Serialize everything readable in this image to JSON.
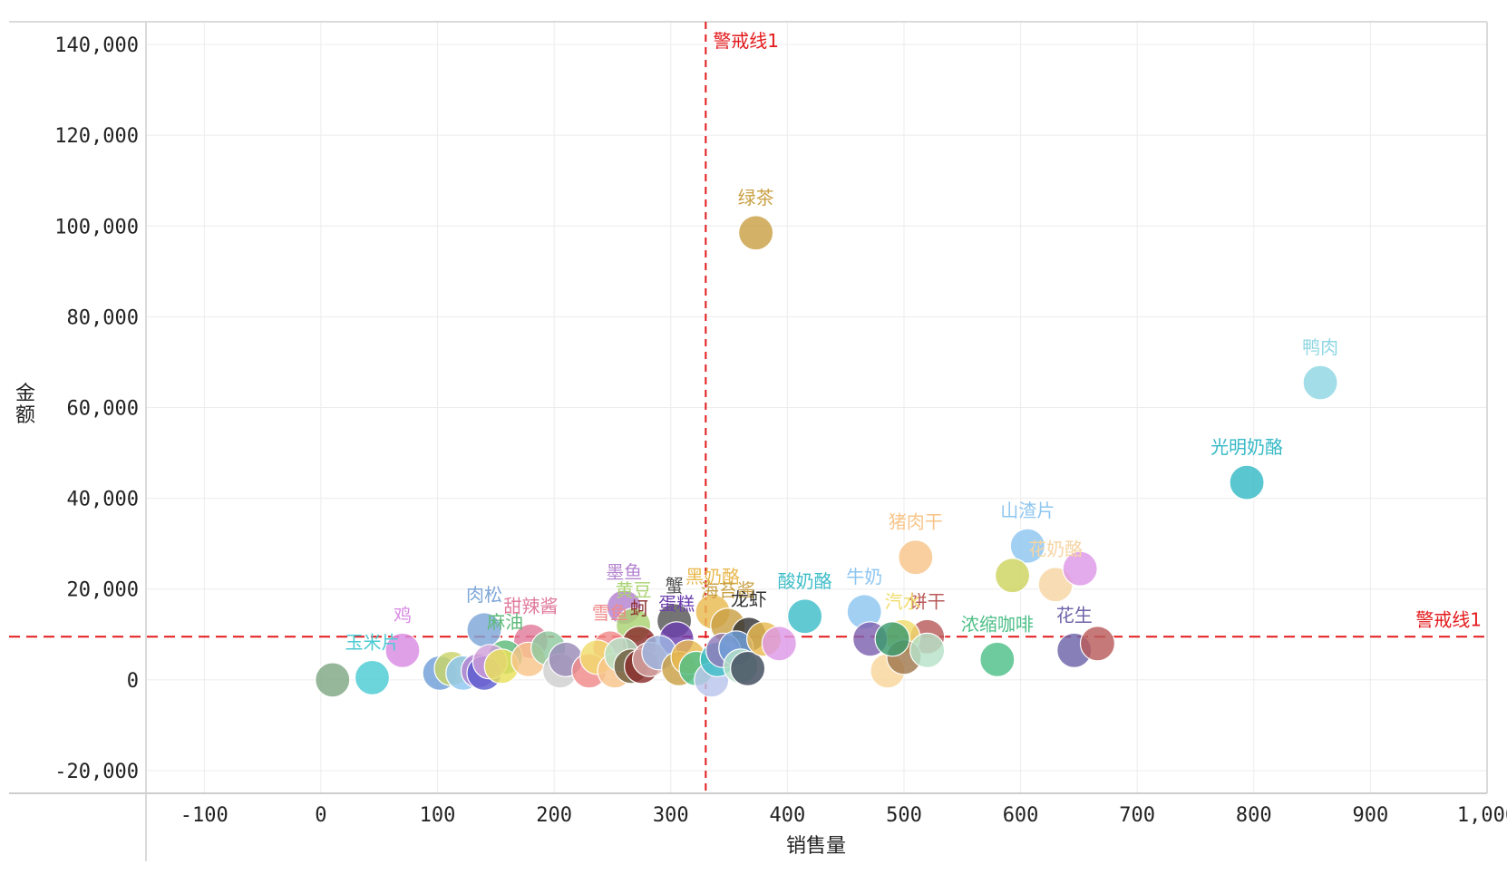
{
  "chart_data": {
    "type": "scatter",
    "xlabel": "销售量",
    "ylabel": "金额",
    "xlim": [
      -150,
      1000
    ],
    "ylim": [
      -25000,
      145000
    ],
    "x_ticks": [
      -100,
      0,
      100,
      200,
      300,
      400,
      500,
      600,
      700,
      800,
      900,
      1000
    ],
    "x_tick_labels": [
      "-100",
      "0",
      "100",
      "200",
      "300",
      "400",
      "500",
      "600",
      "700",
      "800",
      "900",
      "1,000"
    ],
    "y_ticks": [
      -20000,
      0,
      20000,
      40000,
      60000,
      80000,
      100000,
      120000,
      140000
    ],
    "y_tick_labels": [
      "-20,000",
      "0",
      "20,000",
      "40,000",
      "60,000",
      "80,000",
      "100,000",
      "120,000",
      "140,000"
    ],
    "grid": true,
    "reference_lines": [
      {
        "axis": "x",
        "value": 330,
        "label": "警戒线1",
        "color": "#e31a1c"
      },
      {
        "axis": "y",
        "value": 9500,
        "label": "警戒线1",
        "color": "#e31a1c"
      }
    ],
    "points": [
      {
        "name": "鸭肉",
        "x": 857,
        "y": 65500,
        "color": "#8fd7e3",
        "label": "鸭肉"
      },
      {
        "name": "光明奶酪",
        "x": 794,
        "y": 43500,
        "color": "#36b9c6",
        "label": "光明奶酪"
      },
      {
        "name": "绿茶",
        "x": 373,
        "y": 98500,
        "color": "#c9a044",
        "label": "绿茶"
      },
      {
        "name": "猪肉干",
        "x": 510,
        "y": 27000,
        "color": "#f8c58a",
        "label": "猪肉干"
      },
      {
        "name": "山渣片",
        "x": 606,
        "y": 29500,
        "color": "#8ec6f0",
        "label": "山渣片"
      },
      {
        "name": "花奶酪",
        "x": 630,
        "y": 21000,
        "color": "#f6d5a3",
        "label": "花奶酪"
      },
      {
        "name": "",
        "x": 651,
        "y": 24500,
        "color": "#dd99e6",
        "label": ""
      },
      {
        "name": "",
        "x": 593,
        "y": 23000,
        "color": "#cdd35e",
        "label": ""
      },
      {
        "name": "酸奶酪",
        "x": 415,
        "y": 14000,
        "color": "#3dbdc8",
        "label": "酸奶酪"
      },
      {
        "name": "牛奶",
        "x": 466,
        "y": 15000,
        "color": "#8ec6f0",
        "label": "牛奶"
      },
      {
        "name": "饼干",
        "x": 520,
        "y": 9500,
        "color": "#b95b5b",
        "label": "饼干"
      },
      {
        "name": "浓缩咖啡",
        "x": 580,
        "y": 4500,
        "color": "#4dbf87",
        "label": "浓缩咖啡"
      },
      {
        "name": "花生",
        "x": 646,
        "y": 6500,
        "color": "#6d63a8",
        "label": "花生"
      },
      {
        "name": "",
        "x": 666,
        "y": 8000,
        "color": "#b95b5b",
        "label": ""
      },
      {
        "name": "汽水",
        "x": 499,
        "y": 9500,
        "color": "#f1dc6c",
        "label": "汽水"
      },
      {
        "name": "",
        "x": 486,
        "y": 2000,
        "color": "#f8d69a",
        "label": ""
      },
      {
        "name": "",
        "x": 500,
        "y": 5000,
        "color": "#a0774d",
        "label": ""
      },
      {
        "name": "",
        "x": 520,
        "y": 6500,
        "color": "#b6e2c8",
        "label": ""
      },
      {
        "name": "",
        "x": 471,
        "y": 9000,
        "color": "#7e62b0",
        "label": ""
      },
      {
        "name": "",
        "x": 490,
        "y": 9000,
        "color": "#3a9a6e",
        "label": ""
      },
      {
        "name": "墨鱼",
        "x": 260,
        "y": 16000,
        "color": "#b483cf",
        "label": "墨鱼"
      },
      {
        "name": "黄豆",
        "x": 268,
        "y": 12000,
        "color": "#aad270",
        "label": "黄豆"
      },
      {
        "name": "蟹",
        "x": 303,
        "y": 13000,
        "color": "#555555",
        "label": "蟹"
      },
      {
        "name": "黑奶酪",
        "x": 336,
        "y": 15000,
        "color": "#e9b950",
        "label": "黑奶酪"
      },
      {
        "name": "海苔酱",
        "x": 349,
        "y": 12000,
        "color": "#c9a044",
        "label": "海苔酱"
      },
      {
        "name": "龙虾",
        "x": 367,
        "y": 10000,
        "color": "#333333",
        "label": "龙虾"
      },
      {
        "name": "蚵",
        "x": 273,
        "y": 8000,
        "color": "#8b2d2d",
        "label": "蚵"
      },
      {
        "name": "蛋糕",
        "x": 305,
        "y": 9000,
        "color": "#6c3fae",
        "label": "蛋糕"
      },
      {
        "name": "雪鱼",
        "x": 248,
        "y": 7000,
        "color": "#f08a8a",
        "label": "雪鱼"
      },
      {
        "name": "甜辣酱",
        "x": 180,
        "y": 8500,
        "color": "#e07b9c",
        "label": "甜辣酱"
      },
      {
        "name": "麻油",
        "x": 158,
        "y": 5000,
        "color": "#5dbb7a",
        "label": "麻油"
      },
      {
        "name": "肉松",
        "x": 140,
        "y": 11000,
        "color": "#7ea6d8",
        "label": "肉松"
      },
      {
        "name": "鸡",
        "x": 70,
        "y": 6500,
        "color": "#d98be3",
        "label": "鸡"
      },
      {
        "name": "玉米片",
        "x": 44,
        "y": 500,
        "color": "#4ccad3",
        "label": "玉米片"
      },
      {
        "name": "",
        "x": 10,
        "y": 0,
        "color": "#7fa784",
        "label": ""
      },
      {
        "name": "",
        "x": 102,
        "y": 1500,
        "color": "#6f9fd8",
        "label": ""
      },
      {
        "name": "",
        "x": 112,
        "y": 2500,
        "color": "#c9d46a",
        "label": ""
      },
      {
        "name": "",
        "x": 122,
        "y": 1500,
        "color": "#8ec6f0",
        "label": ""
      },
      {
        "name": "",
        "x": 135,
        "y": 2000,
        "color": "#b483cf",
        "label": ""
      },
      {
        "name": "",
        "x": 140,
        "y": 1500,
        "color": "#5b5bcf",
        "label": ""
      },
      {
        "name": "",
        "x": 145,
        "y": 4000,
        "color": "#d1a0d9",
        "label": ""
      },
      {
        "name": "",
        "x": 155,
        "y": 3000,
        "color": "#e9e05a",
        "label": ""
      },
      {
        "name": "",
        "x": 178,
        "y": 4500,
        "color": "#f8c58a",
        "label": ""
      },
      {
        "name": "",
        "x": 195,
        "y": 7000,
        "color": "#8fc9a0",
        "label": ""
      },
      {
        "name": "",
        "x": 205,
        "y": 2000,
        "color": "#cfcfcf",
        "label": ""
      },
      {
        "name": "",
        "x": 210,
        "y": 4500,
        "color": "#9b8bb8",
        "label": ""
      },
      {
        "name": "",
        "x": 230,
        "y": 2000,
        "color": "#f08a8a",
        "label": ""
      },
      {
        "name": "",
        "x": 237,
        "y": 5000,
        "color": "#f1dc6c",
        "label": ""
      },
      {
        "name": "",
        "x": 252,
        "y": 2000,
        "color": "#f8c58a",
        "label": ""
      },
      {
        "name": "",
        "x": 258,
        "y": 5500,
        "color": "#b6e2c8",
        "label": ""
      },
      {
        "name": "",
        "x": 266,
        "y": 3000,
        "color": "#6d5a3a",
        "label": ""
      },
      {
        "name": "",
        "x": 275,
        "y": 3000,
        "color": "#8b2d2d",
        "label": ""
      },
      {
        "name": "",
        "x": 282,
        "y": 4500,
        "color": "#d9a9a9",
        "label": ""
      },
      {
        "name": "",
        "x": 290,
        "y": 6000,
        "color": "#9bb4e0",
        "label": ""
      },
      {
        "name": "",
        "x": 307,
        "y": 2500,
        "color": "#c9a044",
        "label": ""
      },
      {
        "name": "",
        "x": 315,
        "y": 5000,
        "color": "#e9b950",
        "label": ""
      },
      {
        "name": "",
        "x": 322,
        "y": 2500,
        "color": "#4dbf87",
        "label": ""
      },
      {
        "name": "",
        "x": 335,
        "y": 0,
        "color": "#b9c4ec",
        "label": ""
      },
      {
        "name": "",
        "x": 340,
        "y": 4500,
        "color": "#3dbdc8",
        "label": ""
      },
      {
        "name": "",
        "x": 345,
        "y": 6500,
        "color": "#8f7ab8",
        "label": ""
      },
      {
        "name": "",
        "x": 356,
        "y": 7000,
        "color": "#6f9fd8",
        "label": ""
      },
      {
        "name": "",
        "x": 360,
        "y": 3000,
        "color": "#b6e2c8",
        "label": ""
      },
      {
        "name": "",
        "x": 366,
        "y": 2500,
        "color": "#3f4b5c",
        "label": ""
      },
      {
        "name": "",
        "x": 380,
        "y": 9000,
        "color": "#e9b950",
        "label": ""
      },
      {
        "name": "",
        "x": 393,
        "y": 8000,
        "color": "#dd99e6",
        "label": ""
      }
    ]
  }
}
